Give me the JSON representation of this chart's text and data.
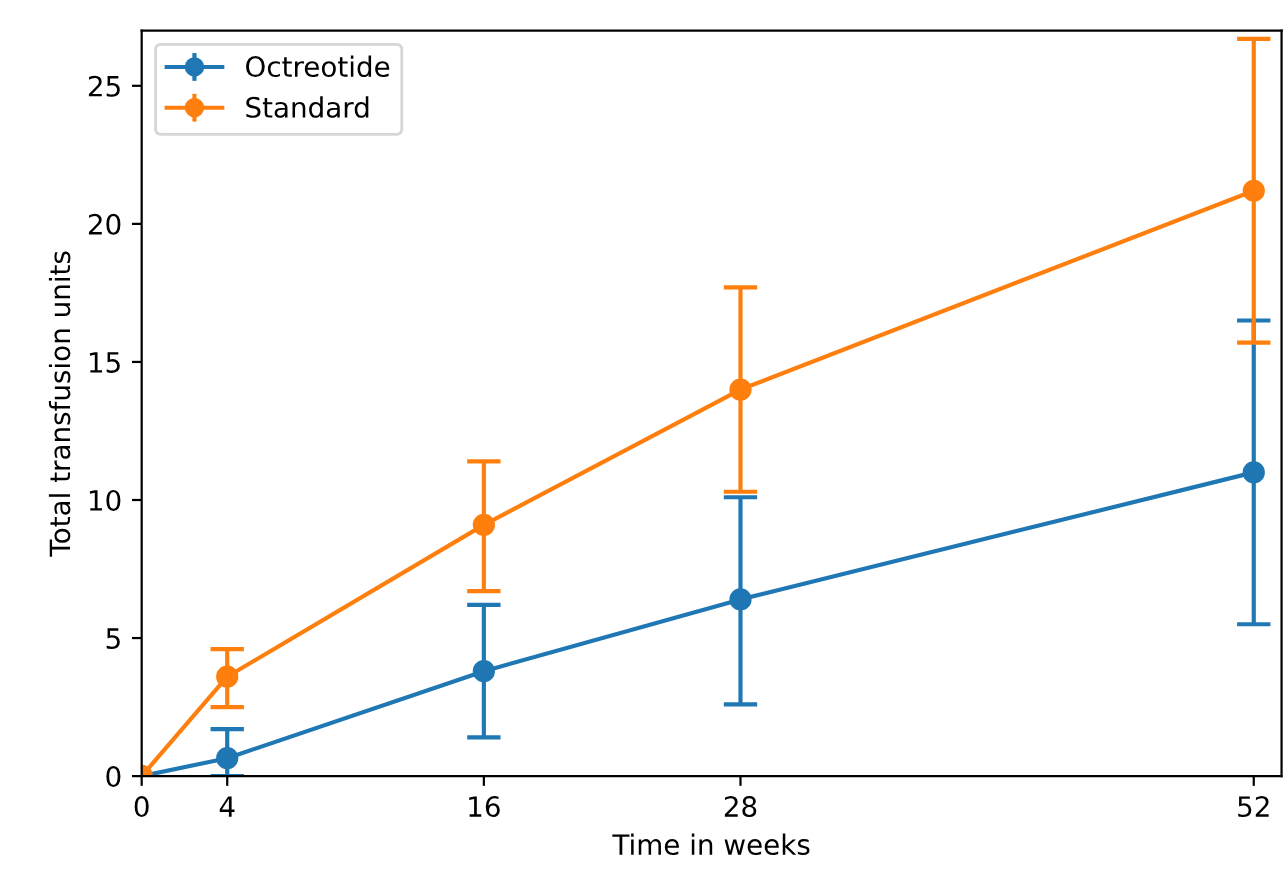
{
  "chart_data": {
    "type": "line",
    "xlabel": "Time in weeks",
    "ylabel": "Total transfusion units",
    "x": [
      0,
      4,
      16,
      28,
      52
    ],
    "series": [
      {
        "name": "Octreotide",
        "color": "#1f77b4",
        "values": [
          0,
          0.65,
          3.8,
          6.4,
          11.0
        ],
        "errors": [
          null,
          [
            0,
            1.7
          ],
          [
            1.4,
            6.2
          ],
          [
            2.6,
            10.1
          ],
          [
            5.5,
            16.5
          ]
        ]
      },
      {
        "name": "Standard",
        "color": "#ff7f0e",
        "values": [
          0,
          3.6,
          9.1,
          14.0,
          21.2
        ],
        "errors": [
          null,
          [
            2.5,
            4.6
          ],
          [
            6.7,
            11.4
          ],
          [
            10.3,
            17.7
          ],
          [
            15.7,
            26.7
          ]
        ]
      }
    ],
    "xlim": [
      0,
      53.3
    ],
    "xticks": [
      0,
      4,
      16,
      28,
      52
    ],
    "ylim": [
      0,
      27
    ],
    "yticks": [
      0,
      5,
      10,
      15,
      20,
      25
    ],
    "marker": "circle",
    "line_style": "solid",
    "grid": false,
    "legend": "top left"
  }
}
